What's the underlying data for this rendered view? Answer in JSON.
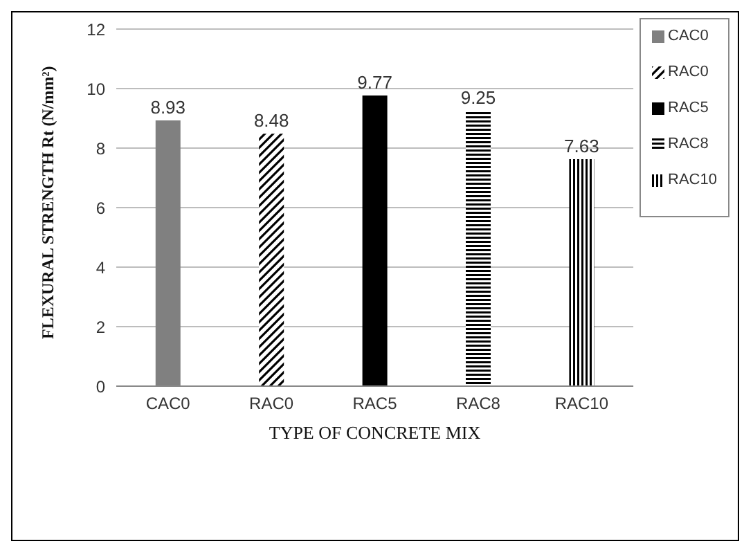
{
  "chart_data": {
    "type": "bar",
    "xlabel": "TYPE OF CONCRETE MIX",
    "ylabel": "FLEXURAL STRENGTH Rt (N/mm²)",
    "categories": [
      "CAC0",
      "RAC0",
      "RAC5",
      "RAC8",
      "RAC10"
    ],
    "series": [
      {
        "name": "CAC0",
        "color": "#808080",
        "values": [
          8.93,
          null,
          null,
          null,
          null
        ]
      },
      {
        "name": "RAC0",
        "color": "#000000",
        "values": [
          null,
          8.48,
          null,
          null,
          null
        ]
      },
      {
        "name": "RAC5",
        "color": "#000000",
        "values": [
          null,
          null,
          9.77,
          null,
          null
        ]
      },
      {
        "name": "RAC8",
        "color": "#000000",
        "values": [
          null,
          null,
          null,
          9.25,
          null
        ]
      },
      {
        "name": "RAC10",
        "color": "#000000",
        "values": [
          null,
          null,
          null,
          null,
          7.63
        ]
      }
    ],
    "stacked": true,
    "ylim": [
      0,
      12
    ],
    "yticks": [
      0,
      2,
      4,
      6,
      8,
      10,
      12
    ],
    "grid": "y",
    "legend": "right",
    "data_labels": true
  }
}
